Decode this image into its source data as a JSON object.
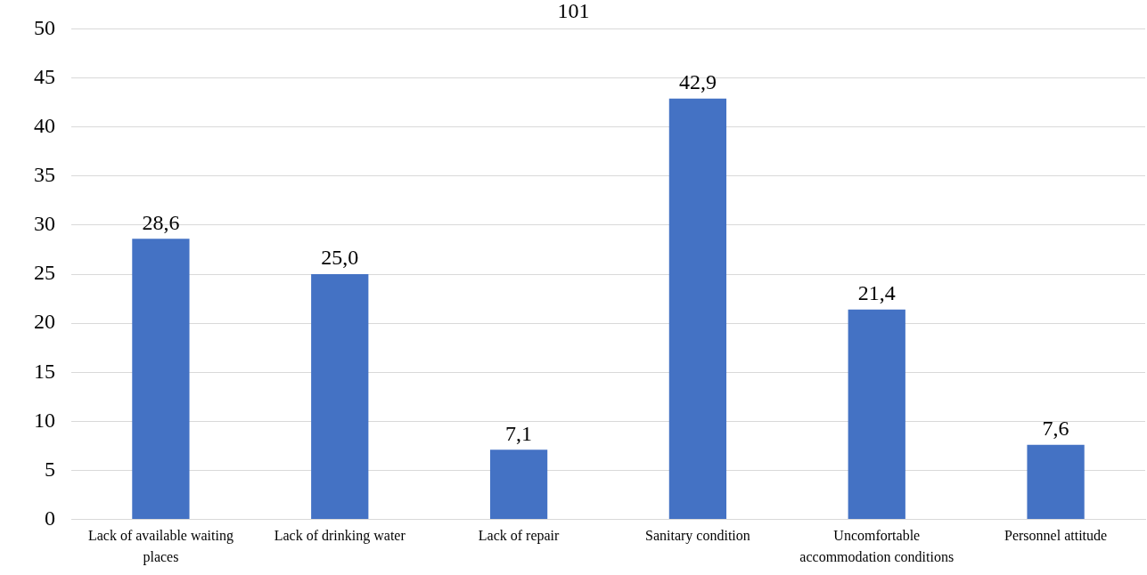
{
  "chart_data": {
    "type": "bar",
    "categories": [
      "Lack of available waiting places",
      "Lack of drinking water",
      "Lack of repair",
      "Sanitary condition",
      "Uncomfortable accommodation conditions",
      "Personnel attitude"
    ],
    "values": [
      28.6,
      25.0,
      7.1,
      42.9,
      21.4,
      7.6
    ],
    "value_labels": [
      "28,6",
      "25,0",
      "7,1",
      "42,9",
      "21,4",
      "7,6"
    ],
    "color": "#4472c4",
    "ylim": [
      0,
      50
    ],
    "yticks": [
      0,
      5,
      10,
      15,
      20,
      25,
      30,
      35,
      40,
      45,
      50
    ],
    "grid": "y",
    "legend": false,
    "annotations": [
      "101"
    ]
  }
}
